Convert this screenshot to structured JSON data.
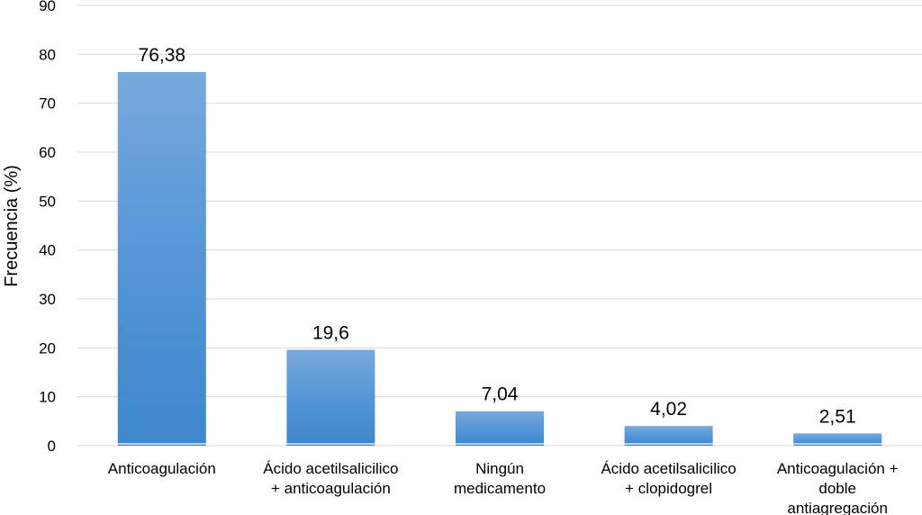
{
  "chart_data": {
    "type": "bar",
    "title": "",
    "xlabel": "",
    "ylabel": "Frecuencia (%)",
    "ylim": [
      0,
      90
    ],
    "yticks": [
      0,
      10,
      20,
      30,
      40,
      50,
      60,
      70,
      80,
      90
    ],
    "grid": true,
    "legend": "none",
    "bar_color": "#5b9bd5",
    "categories": [
      [
        "Anticoagulación"
      ],
      [
        "Ácido acetilsalicilico",
        "+ anticoagulación"
      ],
      [
        "Ningún",
        "medicamento"
      ],
      [
        "Ácido acetilsalicilico",
        "+ clopidogrel"
      ],
      [
        "Anticoagulación +",
        "doble",
        "antiagregación"
      ]
    ],
    "values": [
      76.38,
      19.6,
      7.04,
      4.02,
      2.51
    ],
    "data_labels": [
      "76,38",
      "19,6",
      "7,04",
      "4,02",
      "2,51"
    ]
  }
}
